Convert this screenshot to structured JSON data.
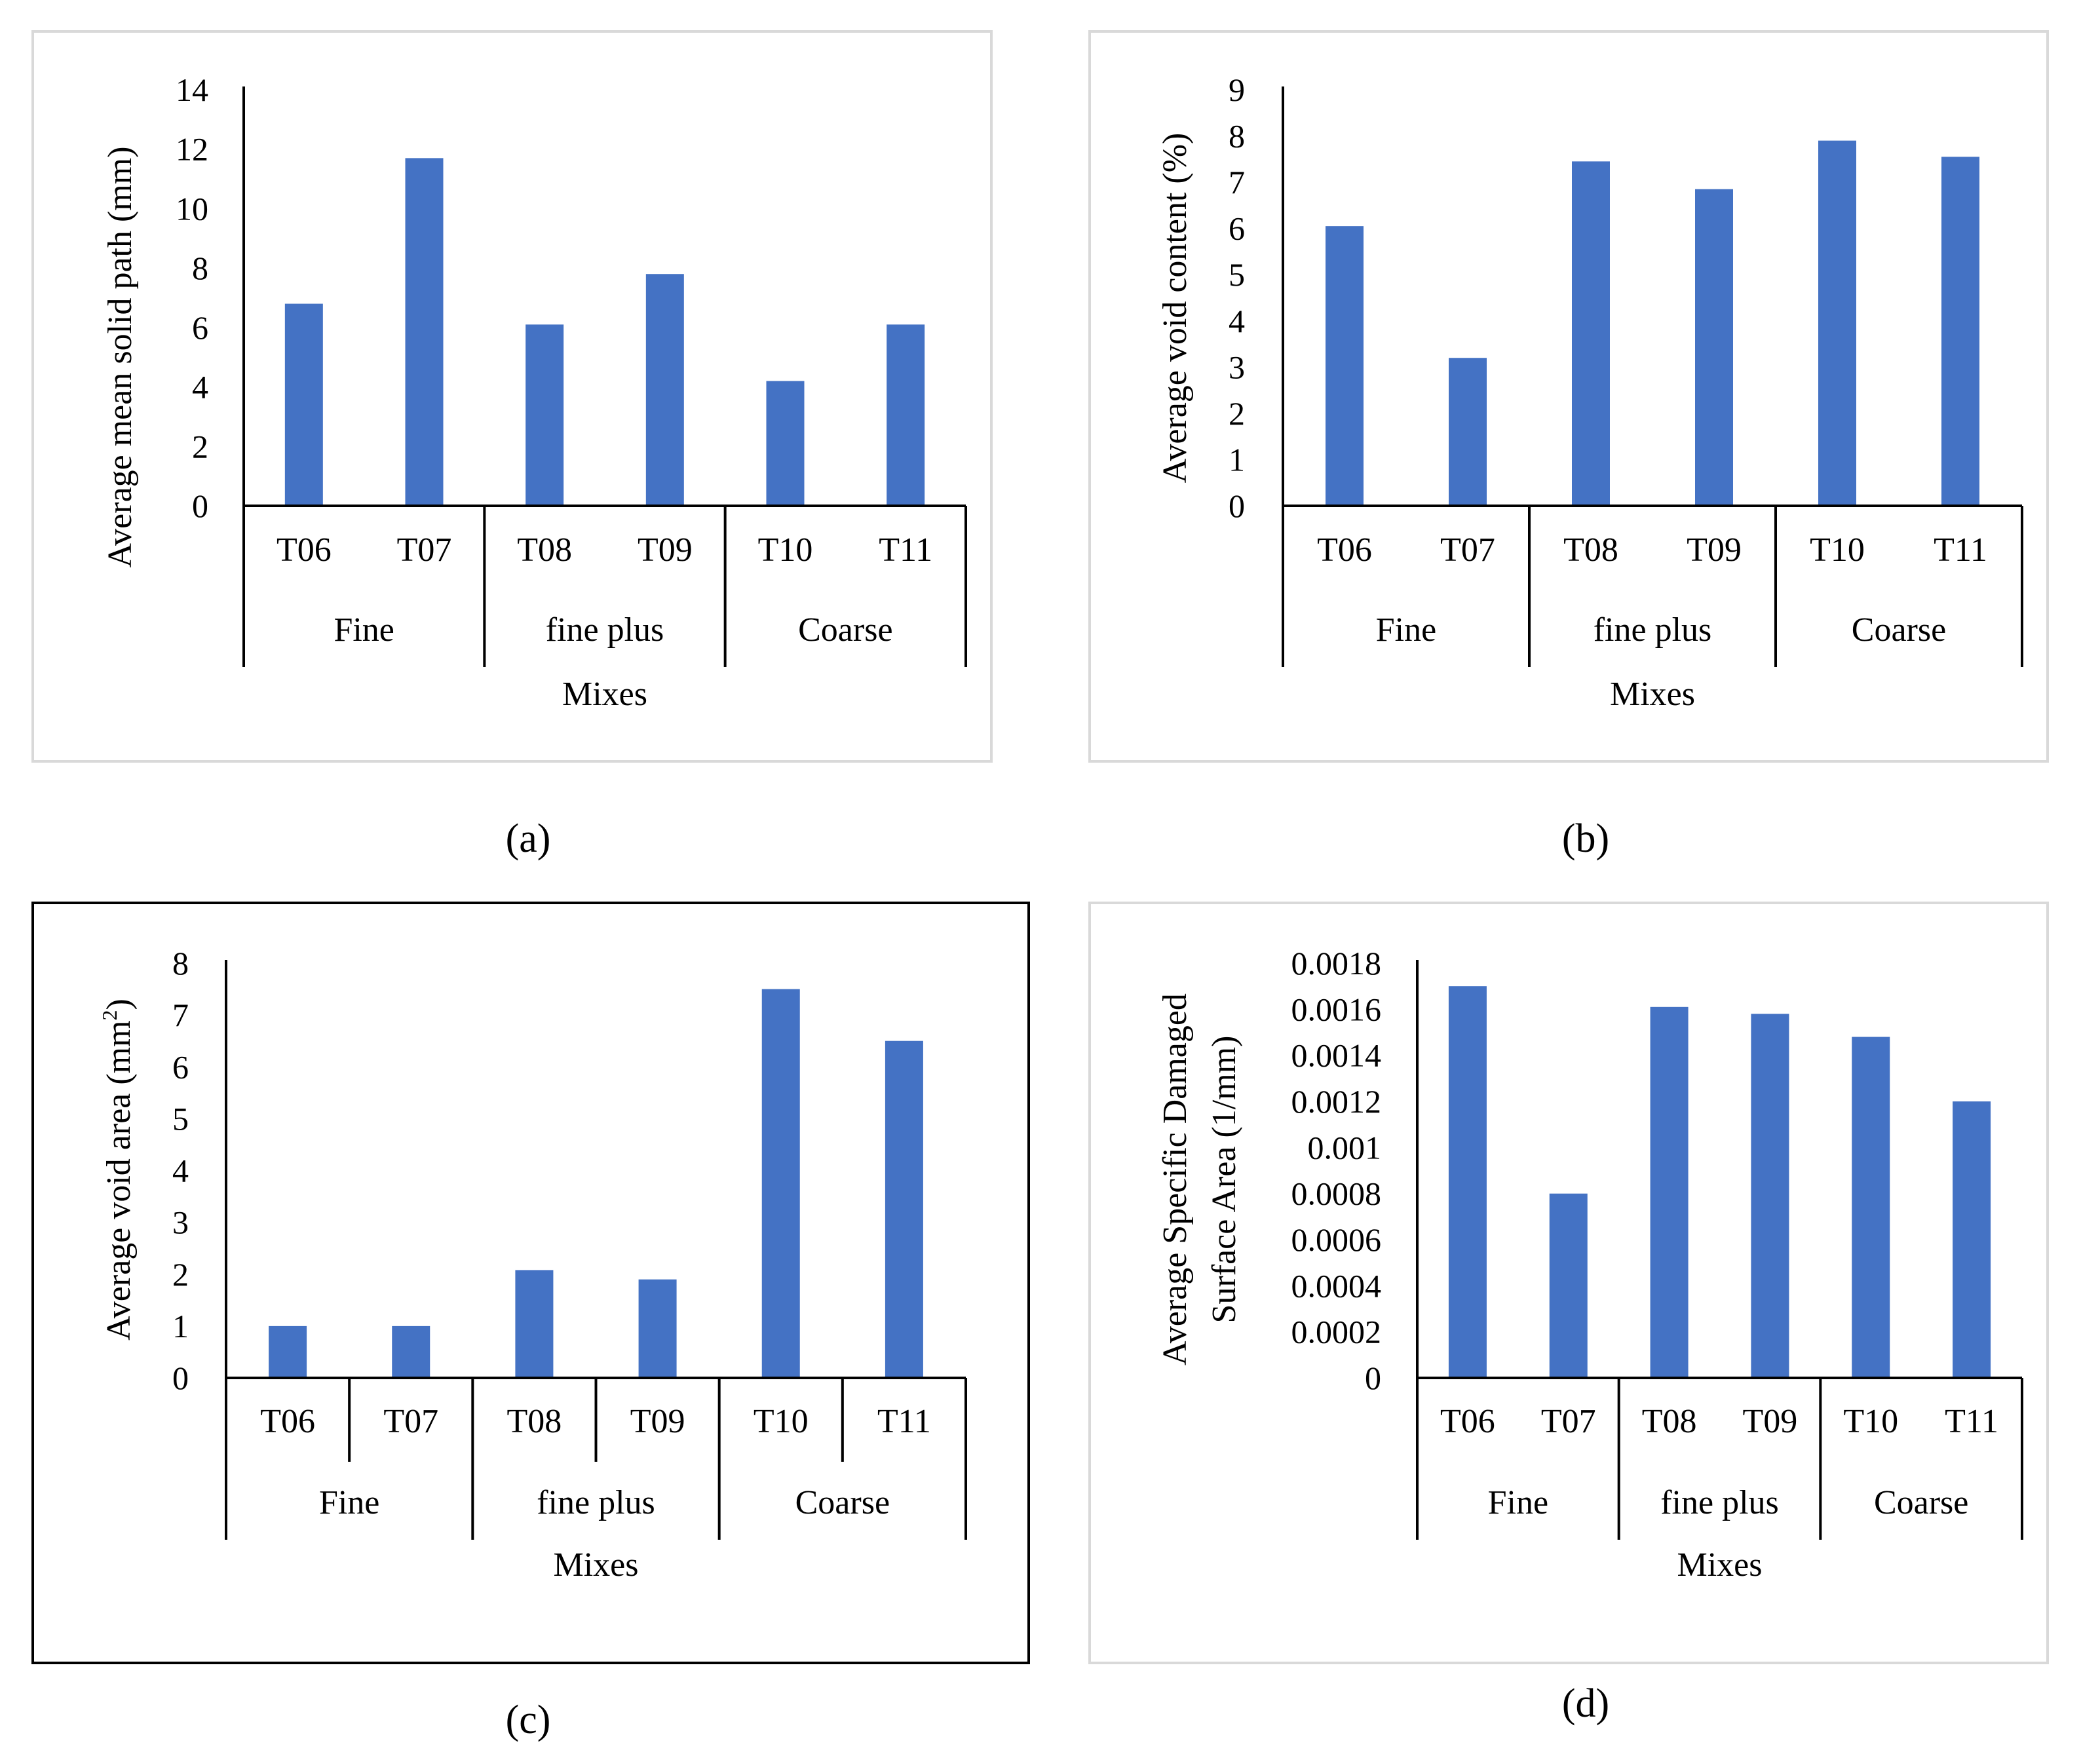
{
  "figure": {
    "bar_color": "#4472C4",
    "frame_color_light": "#d9d9d9",
    "frame_color_dark": "#000000"
  },
  "chart_data": [
    {
      "panel": "a",
      "caption": "(a)",
      "type": "bar",
      "categories": [
        "T06",
        "T07",
        "T08",
        "T09",
        "T10",
        "T11"
      ],
      "groups": [
        {
          "label": "Fine",
          "members": [
            "T06",
            "T07"
          ]
        },
        {
          "label": "fine plus",
          "members": [
            "T08",
            "T09"
          ]
        },
        {
          "label": "Coarse",
          "members": [
            "T10",
            "T11"
          ]
        }
      ],
      "values": [
        6.8,
        11.7,
        6.1,
        7.8,
        4.2,
        6.1
      ],
      "ylabel": "Average mean solid path (mm)",
      "xlabel": "Mixes",
      "ylim": [
        0,
        14
      ],
      "yticks": [
        0,
        2,
        4,
        6,
        8,
        10,
        12,
        14
      ],
      "ytick_labels": [
        "0",
        "2",
        "4",
        "6",
        "8",
        "10",
        "12",
        "14"
      ],
      "frame": "light",
      "category_dividers": false
    },
    {
      "panel": "b",
      "caption": "(b)",
      "type": "bar",
      "categories": [
        "T06",
        "T07",
        "T08",
        "T09",
        "T10",
        "T11"
      ],
      "groups": [
        {
          "label": "Fine",
          "members": [
            "T06",
            "T07"
          ]
        },
        {
          "label": "fine plus",
          "members": [
            "T08",
            "T09"
          ]
        },
        {
          "label": "Coarse",
          "members": [
            "T10",
            "T11"
          ]
        }
      ],
      "values": [
        6.05,
        3.2,
        7.45,
        6.85,
        7.9,
        7.55
      ],
      "ylabel": "Average void content (%)",
      "xlabel": "Mixes",
      "ylim": [
        0,
        9
      ],
      "yticks": [
        0,
        1,
        2,
        3,
        4,
        5,
        6,
        7,
        8,
        9
      ],
      "ytick_labels": [
        "0",
        "1",
        "2",
        "3",
        "4",
        "5",
        "6",
        "7",
        "8",
        "9"
      ],
      "frame": "light",
      "category_dividers": false
    },
    {
      "panel": "c",
      "caption": "(c)",
      "type": "bar",
      "categories": [
        "T06",
        "T07",
        "T08",
        "T09",
        "T10",
        "T11"
      ],
      "groups": [
        {
          "label": "Fine",
          "members": [
            "T06",
            "T07"
          ]
        },
        {
          "label": "fine plus",
          "members": [
            "T08",
            "T09"
          ]
        },
        {
          "label": "Coarse",
          "members": [
            "T10",
            "T11"
          ]
        }
      ],
      "values": [
        1.0,
        1.0,
        2.08,
        1.9,
        7.5,
        6.5
      ],
      "ylabel_main": "Average void area (mm",
      "ylabel_sup": "2",
      "ylabel_tail": ")",
      "xlabel": "Mixes",
      "ylim": [
        0,
        8
      ],
      "yticks": [
        0,
        1,
        2,
        3,
        4,
        5,
        6,
        7,
        8
      ],
      "ytick_labels": [
        "0",
        "1",
        "2",
        "3",
        "4",
        "5",
        "6",
        "7",
        "8"
      ],
      "frame": "dark",
      "category_dividers": true
    },
    {
      "panel": "d",
      "caption": "(d)",
      "type": "bar",
      "categories": [
        "T06",
        "T07",
        "T08",
        "T09",
        "T10",
        "T11"
      ],
      "groups": [
        {
          "label": "Fine",
          "members": [
            "T06",
            "T07"
          ]
        },
        {
          "label": "fine plus",
          "members": [
            "T08",
            "T09"
          ]
        },
        {
          "label": "Coarse",
          "members": [
            "T10",
            "T11"
          ]
        }
      ],
      "values": [
        0.0017,
        0.0008,
        0.00161,
        0.00158,
        0.00148,
        0.0012
      ],
      "ylabel_lines": [
        "Average Specific Damaged",
        "Surface Area (1/mm)"
      ],
      "xlabel": "Mixes",
      "ylim": [
        0,
        0.0018
      ],
      "yticks": [
        0,
        0.0002,
        0.0004,
        0.0006,
        0.0008,
        0.001,
        0.0012,
        0.0014,
        0.0016,
        0.0018
      ],
      "ytick_labels": [
        "0",
        "0.0002",
        "0.0004",
        "0.0006",
        "0.0008",
        "0.001",
        "0.0012",
        "0.0014",
        "0.0016",
        "0.0018"
      ],
      "frame": "light",
      "category_dividers": false
    }
  ]
}
